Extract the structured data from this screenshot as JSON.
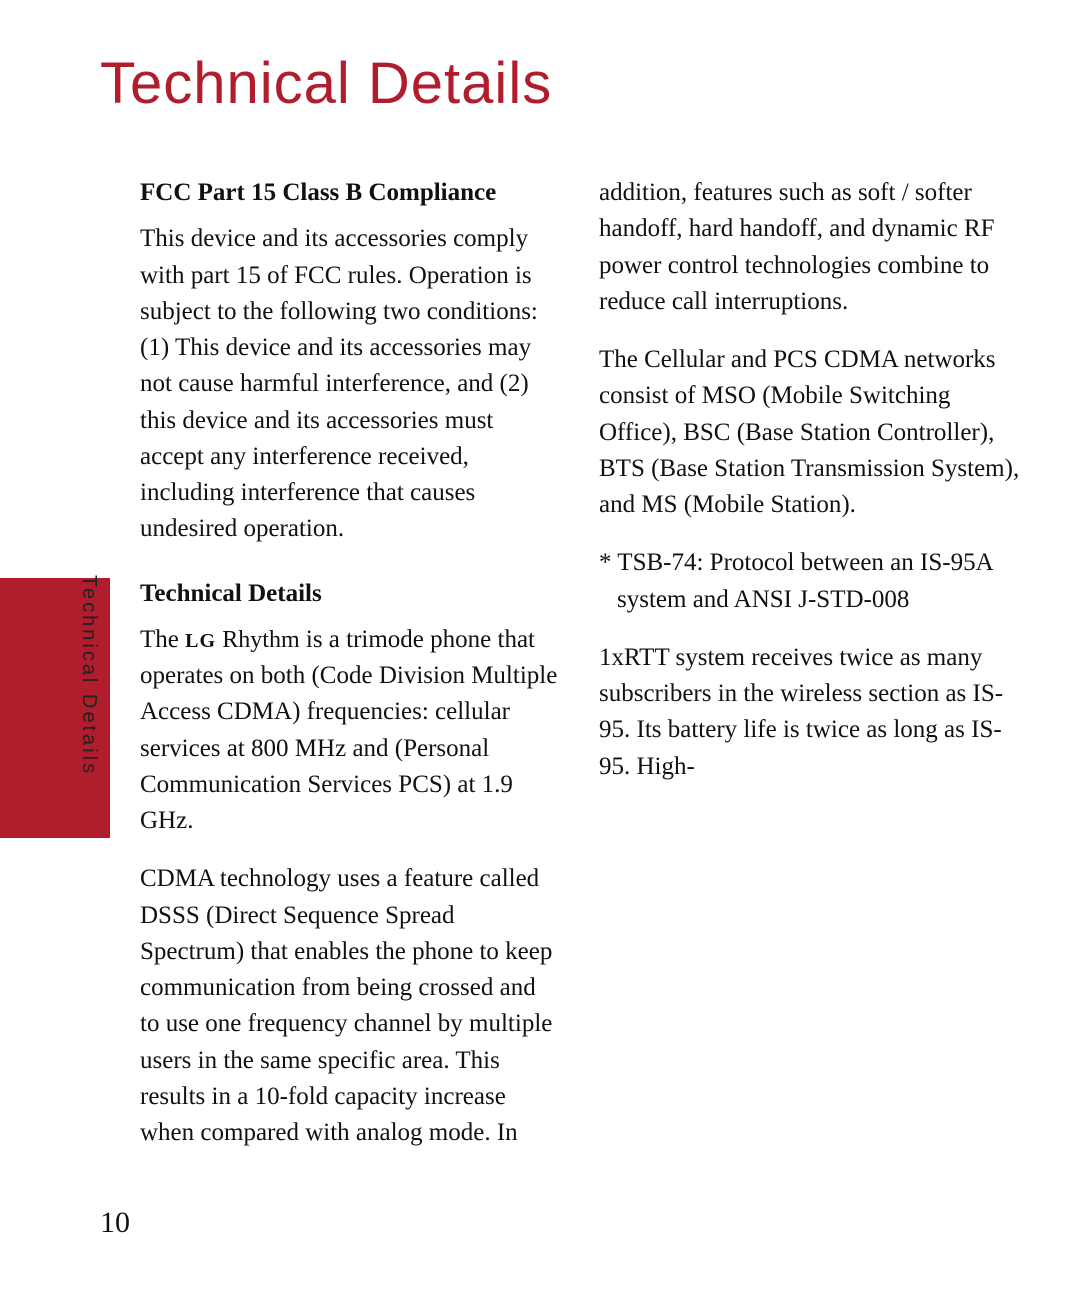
{
  "page": {
    "title": "Technical Details",
    "side_label": "Technical Details",
    "page_number": "10",
    "colors": {
      "accent": "#b01e2e",
      "text": "#111111",
      "background": "#ffffff"
    },
    "typography": {
      "title_fontsize": 58,
      "body_fontsize": 25,
      "side_label_fontsize": 20
    }
  },
  "sections": {
    "fcc": {
      "heading": "FCC Part 15 Class B Compliance",
      "body": "This device and its accessories comply with part 15 of FCC rules. Operation is subject to the following two conditions: (1) This device and its accessories may not cause harmful interference, and (2) this device and its accessories must accept any interference received, including interference that causes undesired operation."
    },
    "tech": {
      "heading": "Technical Details",
      "p1_prefix": "The ",
      "p1_brand": "LG",
      "p1_model": "Rhythm",
      "p1_suffix": " is a trimode phone that operates on both (Code Division Multiple Access CDMA) frequencies: cellular services at 800 MHz and (Personal Communication Services PCS) at 1.9 GHz.",
      "p2": "CDMA technology uses a feature called DSSS (Direct Sequence Spread Spectrum) that enables the phone to keep communication from being crossed and to use one frequency channel by multiple users in the same specific area. This results in a 10-fold capacity increase when compared with analog mode. In addition, features such as soft / softer handoff, hard handoff, and dynamic RF power control technologies combine to reduce call interruptions.",
      "p3": "The Cellular and PCS CDMA networks consist of MSO (Mobile Switching Office), BSC (Base Station Controller), BTS (Base Station Transmission System), and MS (Mobile Station).",
      "p4": "* TSB-74: Protocol between an IS-95A system and ANSI J-STD-008",
      "p5": "1xRTT system receives twice as many subscribers in the wireless section as IS-95. Its battery life is twice as long as IS-95. High-"
    }
  }
}
